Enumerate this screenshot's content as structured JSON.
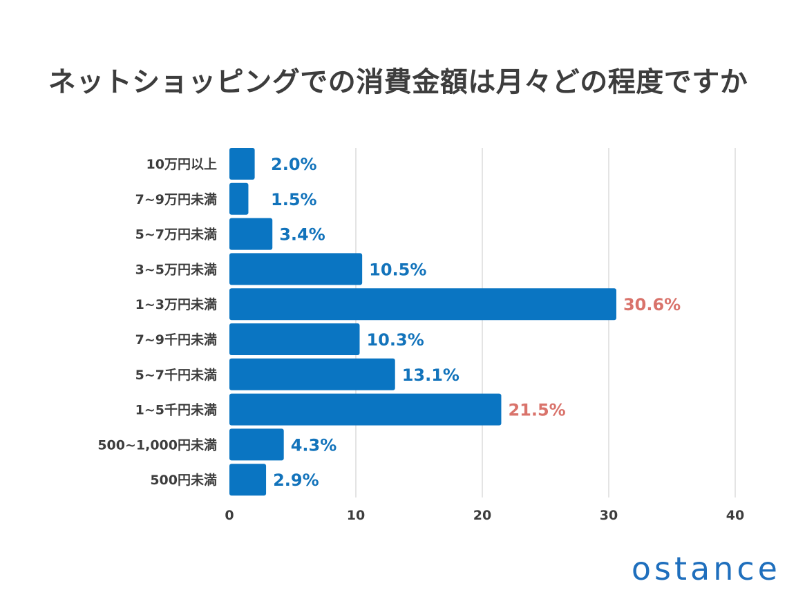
{
  "chart_data": {
    "type": "bar",
    "orientation": "horizontal",
    "title": "ネットショッピングでの消費金額は月々どの程度ですか",
    "categories": [
      "10万円以上",
      "7~9万円未満",
      "5~7万円未満",
      "3~5万円未満",
      "1~3万円未満",
      "7~9千円未満",
      "5~7千円未満",
      "1~5千円未満",
      "500~1,000円未満",
      "500円未満"
    ],
    "values": [
      2.0,
      1.5,
      3.4,
      10.5,
      30.6,
      10.3,
      13.1,
      21.5,
      4.3,
      2.9
    ],
    "value_labels": [
      "2.0%",
      "1.5%",
      "3.4%",
      "10.5%",
      "30.6%",
      "10.3%",
      "13.1%",
      "21.5%",
      "4.3%",
      "2.9%"
    ],
    "highlighted": [
      false,
      false,
      false,
      false,
      true,
      false,
      false,
      true,
      false,
      false
    ],
    "xlim": [
      0,
      40
    ],
    "xticks": [
      0,
      10,
      20,
      30,
      40
    ],
    "xtick_labels": [
      "0",
      "10",
      "20",
      "30",
      "40"
    ],
    "grid": true,
    "colors": {
      "bar": "#0a75c2",
      "label": "#1273bb",
      "highlight_label": "#d9736b",
      "grid": "#dcdcdc",
      "text": "#3d3d3d"
    }
  },
  "brand": {
    "logo_text": "ostance"
  }
}
